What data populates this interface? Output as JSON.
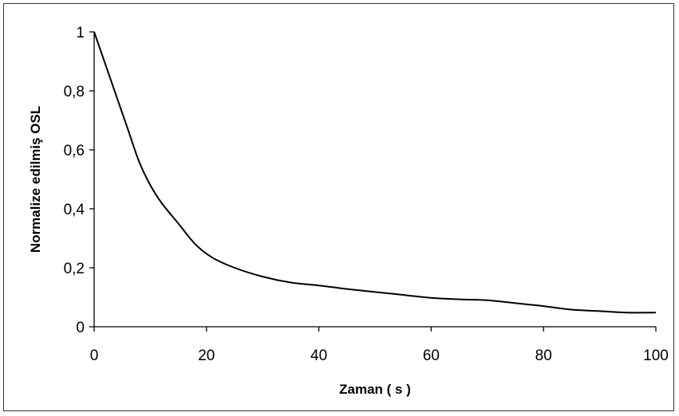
{
  "chart_data": {
    "type": "line",
    "title": "",
    "xlabel": "Zaman ( s )",
    "ylabel": "Normalize edilmiş OSL",
    "xlim": [
      0,
      100
    ],
    "ylim": [
      0,
      1
    ],
    "x_ticks": [
      0,
      20,
      40,
      60,
      80,
      100
    ],
    "x_tick_labels": [
      "0",
      "20",
      "40",
      "60",
      "80",
      "100"
    ],
    "y_ticks": [
      0,
      0.2,
      0.4,
      0.6,
      0.8,
      1
    ],
    "y_tick_labels": [
      "0",
      "0,2",
      "0,4",
      "0,6",
      "0,8",
      "1"
    ],
    "grid": false,
    "legend": "none",
    "series": [
      {
        "color": "#000000",
        "x": [
          0,
          2,
          4,
          6,
          8,
          10,
          12,
          15,
          18,
          21,
          25,
          30,
          35,
          40,
          45,
          50,
          55,
          60,
          65,
          70,
          75,
          80,
          85,
          90,
          95,
          100
        ],
        "y": [
          1.0,
          0.89,
          0.78,
          0.67,
          0.56,
          0.48,
          0.42,
          0.35,
          0.28,
          0.235,
          0.2,
          0.17,
          0.15,
          0.14,
          0.128,
          0.118,
          0.108,
          0.098,
          0.093,
          0.09,
          0.08,
          0.07,
          0.058,
          0.053,
          0.048,
          0.048
        ]
      }
    ]
  }
}
